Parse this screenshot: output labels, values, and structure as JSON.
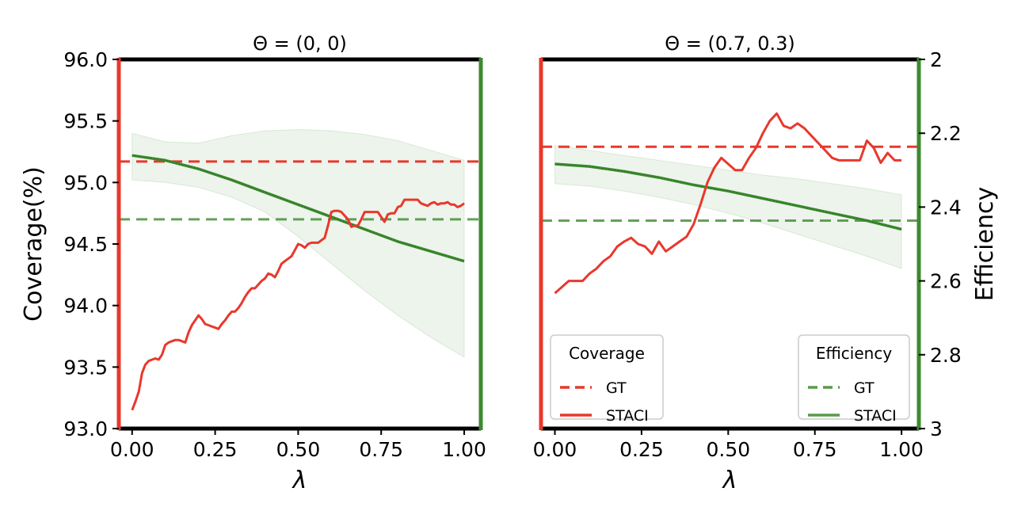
{
  "chart_data": {
    "type": "line",
    "ylabel_left": "Coverage(%)",
    "ylabel_right": "Efficiency",
    "coverage_color": "#e8382c",
    "efficiency_color": "#3c8a2e",
    "band_color": "#3c8a2e",
    "panels": [
      {
        "title": "Θ = (0, 0)",
        "xlabel": "λ",
        "xlim": [
          -0.04,
          1.05
        ],
        "xticks": [
          {
            "v": 0.0,
            "label": "0.00"
          },
          {
            "v": 0.25,
            "label": "0.25"
          },
          {
            "v": 0.5,
            "label": "0.50"
          },
          {
            "v": 0.75,
            "label": "0.75"
          },
          {
            "v": 1.0,
            "label": "1.00"
          }
        ],
        "coverage_ylim": [
          93.0,
          96.0
        ],
        "coverage_yticks": [
          {
            "v": 96.0,
            "label": "96.0"
          },
          {
            "v": 95.5,
            "label": "95.5"
          },
          {
            "v": 95.0,
            "label": "95.0"
          },
          {
            "v": 94.5,
            "label": "94.5"
          },
          {
            "v": 94.0,
            "label": "94.0"
          },
          {
            "v": 93.5,
            "label": "93.5"
          },
          {
            "v": 93.0,
            "label": "93.0"
          }
        ],
        "coverage_gt": 95.17,
        "efficiency_gt_cov": 94.7,
        "coverage_staci": {
          "x": [
            0.0,
            0.01,
            0.02,
            0.03,
            0.04,
            0.05,
            0.06,
            0.07,
            0.08,
            0.09,
            0.1,
            0.11,
            0.12,
            0.13,
            0.14,
            0.15,
            0.16,
            0.17,
            0.18,
            0.19,
            0.2,
            0.21,
            0.22,
            0.23,
            0.24,
            0.25,
            0.26,
            0.27,
            0.28,
            0.29,
            0.3,
            0.31,
            0.32,
            0.33,
            0.34,
            0.35,
            0.36,
            0.37,
            0.38,
            0.39,
            0.4,
            0.41,
            0.42,
            0.43,
            0.44,
            0.45,
            0.46,
            0.47,
            0.48,
            0.49,
            0.5,
            0.51,
            0.52,
            0.53,
            0.54,
            0.55,
            0.56,
            0.57,
            0.58,
            0.59,
            0.6,
            0.61,
            0.62,
            0.63,
            0.64,
            0.65,
            0.66,
            0.67,
            0.68,
            0.69,
            0.7,
            0.71,
            0.72,
            0.73,
            0.74,
            0.75,
            0.76,
            0.77,
            0.78,
            0.79,
            0.8,
            0.81,
            0.82,
            0.83,
            0.84,
            0.85,
            0.86,
            0.87,
            0.88,
            0.89,
            0.9,
            0.91,
            0.92,
            0.93,
            0.94,
            0.95,
            0.96,
            0.97,
            0.98,
            0.99,
            1.0
          ],
          "y": [
            93.15,
            93.22,
            93.3,
            93.45,
            93.52,
            93.55,
            93.56,
            93.57,
            93.56,
            93.6,
            93.68,
            93.7,
            93.71,
            93.72,
            93.72,
            93.71,
            93.7,
            93.78,
            93.84,
            93.88,
            93.92,
            93.89,
            93.85,
            93.84,
            93.83,
            93.82,
            93.81,
            93.85,
            93.88,
            93.92,
            93.95,
            93.95,
            93.98,
            94.02,
            94.07,
            94.11,
            94.14,
            94.14,
            94.17,
            94.2,
            94.22,
            94.26,
            94.25,
            94.23,
            94.28,
            94.34,
            94.36,
            94.38,
            94.4,
            94.45,
            94.5,
            94.49,
            94.47,
            94.5,
            94.51,
            94.51,
            94.51,
            94.53,
            94.55,
            94.65,
            94.76,
            94.77,
            94.77,
            94.76,
            94.73,
            94.7,
            94.64,
            94.65,
            94.65,
            94.7,
            94.76,
            94.76,
            94.76,
            94.76,
            94.76,
            94.72,
            94.68,
            94.74,
            94.75,
            94.75,
            94.8,
            94.81,
            94.86,
            94.86,
            94.86,
            94.86,
            94.86,
            94.83,
            94.82,
            94.81,
            94.83,
            94.84,
            94.82,
            94.83,
            94.83,
            94.84,
            94.82,
            94.82,
            94.8,
            94.81,
            94.83
          ]
        },
        "efficiency_staci_cov": {
          "x": [
            0.0,
            0.1,
            0.2,
            0.3,
            0.4,
            0.5,
            0.6,
            0.7,
            0.8,
            0.9,
            1.0
          ],
          "y": [
            95.22,
            95.18,
            95.11,
            95.02,
            94.92,
            94.82,
            94.72,
            94.62,
            94.52,
            94.44,
            94.36
          ]
        },
        "band_upper_cov": [
          95.4,
          95.33,
          95.32,
          95.38,
          95.42,
          95.43,
          95.42,
          95.39,
          95.34,
          95.26,
          95.18
        ],
        "band_lower_cov": [
          95.02,
          95.0,
          94.96,
          94.88,
          94.76,
          94.56,
          94.34,
          94.12,
          93.92,
          93.74,
          93.58
        ]
      },
      {
        "title": "Θ = (0.7, 0.3)",
        "xlabel": "λ",
        "xlim": [
          -0.04,
          1.05
        ],
        "xticks": [
          {
            "v": 0.0,
            "label": "0.00"
          },
          {
            "v": 0.25,
            "label": "0.25"
          },
          {
            "v": 0.5,
            "label": "0.50"
          },
          {
            "v": 0.75,
            "label": "0.75"
          },
          {
            "v": 1.0,
            "label": "1.00"
          }
        ],
        "coverage_ylim": [
          93.0,
          96.0
        ],
        "efficiency_ylim": [
          2.0,
          3.0
        ],
        "efficiency_yticks": [
          {
            "v": 2.0,
            "label": "2"
          },
          {
            "v": 2.2,
            "label": "2.2"
          },
          {
            "v": 2.4,
            "label": "2.4"
          },
          {
            "v": 2.6,
            "label": "2.6"
          },
          {
            "v": 2.8,
            "label": "2.8"
          },
          {
            "v": 3.0,
            "label": "3"
          }
        ],
        "coverage_gt": 95.29,
        "efficiency_gt_cov": 94.69,
        "coverage_staci": {
          "x": [
            0.0,
            0.02,
            0.04,
            0.06,
            0.08,
            0.1,
            0.12,
            0.14,
            0.16,
            0.18,
            0.2,
            0.22,
            0.24,
            0.26,
            0.28,
            0.3,
            0.32,
            0.34,
            0.36,
            0.38,
            0.4,
            0.42,
            0.44,
            0.46,
            0.48,
            0.5,
            0.52,
            0.54,
            0.56,
            0.58,
            0.6,
            0.62,
            0.64,
            0.66,
            0.68,
            0.7,
            0.72,
            0.74,
            0.76,
            0.78,
            0.8,
            0.82,
            0.84,
            0.86,
            0.88,
            0.9,
            0.92,
            0.94,
            0.96,
            0.98,
            1.0
          ],
          "y": [
            94.1,
            94.15,
            94.2,
            94.2,
            94.2,
            94.26,
            94.3,
            94.36,
            94.4,
            94.48,
            94.52,
            94.55,
            94.5,
            94.48,
            94.42,
            94.52,
            94.44,
            94.48,
            94.52,
            94.56,
            94.66,
            94.82,
            95.0,
            95.12,
            95.2,
            95.15,
            95.1,
            95.1,
            95.2,
            95.28,
            95.4,
            95.5,
            95.56,
            95.46,
            95.44,
            95.48,
            95.44,
            95.38,
            95.32,
            95.26,
            95.2,
            95.18,
            95.18,
            95.18,
            95.18,
            95.34,
            95.28,
            95.16,
            95.24,
            95.18,
            95.18
          ]
        },
        "efficiency_staci_cov": {
          "x": [
            0.0,
            0.1,
            0.2,
            0.3,
            0.4,
            0.5,
            0.6,
            0.7,
            0.8,
            0.9,
            1.0
          ],
          "y": [
            95.15,
            95.13,
            95.09,
            95.04,
            94.98,
            94.93,
            94.87,
            94.81,
            94.75,
            94.69,
            94.62
          ]
        },
        "band_upper_cov": [
          95.3,
          95.26,
          95.22,
          95.18,
          95.14,
          95.1,
          95.06,
          95.03,
          94.99,
          94.95,
          94.9
        ],
        "band_lower_cov": [
          94.99,
          94.97,
          94.93,
          94.88,
          94.82,
          94.75,
          94.67,
          94.58,
          94.49,
          94.4,
          94.3
        ]
      }
    ],
    "legends": {
      "coverage": {
        "title": "Coverage",
        "items": [
          {
            "label": "GT",
            "style": "dashed"
          },
          {
            "label": "STACI",
            "style": "solid"
          }
        ]
      },
      "efficiency": {
        "title": "Efficiency",
        "items": [
          {
            "label": "GT",
            "style": "dashed"
          },
          {
            "label": "STACI",
            "style": "solid"
          }
        ]
      }
    }
  }
}
